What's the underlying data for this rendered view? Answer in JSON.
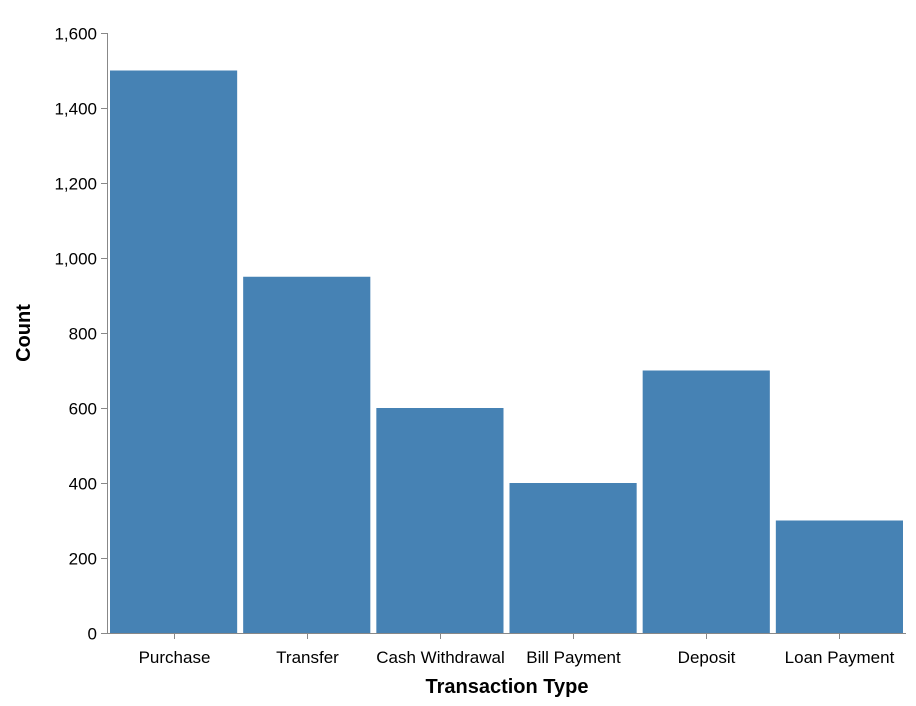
{
  "chart_data": {
    "type": "bar",
    "categories": [
      "Purchase",
      "Transfer",
      "Cash Withdrawal",
      "Bill Payment",
      "Deposit",
      "Loan Payment"
    ],
    "values": [
      1500,
      950,
      600,
      400,
      700,
      300
    ],
    "title": "",
    "xlabel": "Transaction Type",
    "ylabel": "Count",
    "ylim": [
      0,
      1600
    ],
    "yticks": [
      "0",
      "200",
      "400",
      "600",
      "800",
      "1,000",
      "1,200",
      "1,400",
      "1,600"
    ],
    "grid": false,
    "bar_color": "#4682b4",
    "axis_color": "#888888"
  }
}
